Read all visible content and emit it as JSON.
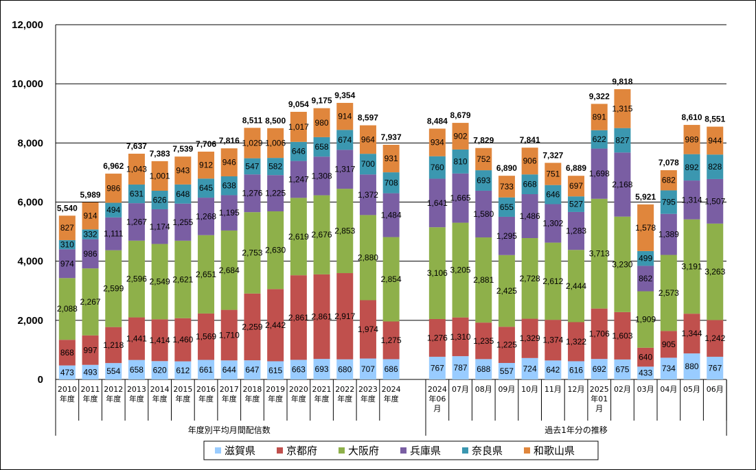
{
  "chart_data": {
    "type": "bar",
    "stacked": true,
    "ylim": [
      0,
      12000
    ],
    "yticks": [
      "0",
      "2,000",
      "4,000",
      "6,000",
      "8,000",
      "10,000",
      "12,000"
    ],
    "grid": true,
    "legend_position": "bottom",
    "categories": [
      [
        "2010",
        "年度"
      ],
      [
        "2011",
        "年度"
      ],
      [
        "2012",
        "年度"
      ],
      [
        "2013",
        "年度"
      ],
      [
        "2014",
        "年度"
      ],
      [
        "2015",
        "年度"
      ],
      [
        "2016",
        "年度"
      ],
      [
        "2017",
        "年度"
      ],
      [
        "2018",
        "年度"
      ],
      [
        "2019",
        "年度"
      ],
      [
        "2020",
        "年度"
      ],
      [
        "2021",
        "年度"
      ],
      [
        "2022",
        "年度"
      ],
      [
        "2023",
        "年度"
      ],
      [
        "2024",
        "年度"
      ],
      [
        "2024",
        "年06",
        "月"
      ],
      [
        "07月"
      ],
      [
        "08月"
      ],
      [
        "09月"
      ],
      [
        "10月"
      ],
      [
        "11月"
      ],
      [
        "12月"
      ],
      [
        "2025",
        "年01",
        "月"
      ],
      [
        "02月"
      ],
      [
        "03月"
      ],
      [
        "04月"
      ],
      [
        "05月"
      ],
      [
        "06月"
      ]
    ],
    "groups": [
      {
        "label": "年度別平均月間配信数",
        "count": 15
      },
      {
        "label": "過去1年分の推移",
        "count": 13
      }
    ],
    "series": [
      {
        "name": "滋賀県",
        "color": "#99ccff",
        "values": [
          473,
          493,
          554,
          658,
          620,
          612,
          661,
          644,
          647,
          615,
          663,
          693,
          680,
          707,
          686,
          767,
          787,
          688,
          557,
          724,
          642,
          616,
          692,
          675,
          433,
          734,
          880,
          767
        ]
      },
      {
        "name": "京都府",
        "color": "#c0504d",
        "values": [
          868,
          997,
          1218,
          1441,
          1414,
          1460,
          1569,
          1710,
          2259,
          2442,
          2861,
          2861,
          2917,
          1974,
          1275,
          1276,
          1310,
          1235,
          1225,
          1329,
          1374,
          1322,
          1706,
          1603,
          640,
          905,
          1344,
          1242
        ]
      },
      {
        "name": "大阪府",
        "color": "#8eb04a",
        "values": [
          2088,
          2267,
          2599,
          2596,
          2549,
          2621,
          2651,
          2684,
          2753,
          2630,
          2619,
          2676,
          2853,
          2880,
          2854,
          3106,
          3205,
          2881,
          2425,
          2728,
          2612,
          2444,
          3713,
          3230,
          1909,
          2573,
          3191,
          3263
        ]
      },
      {
        "name": "兵庫県",
        "color": "#7a5ea3",
        "values": [
          974,
          986,
          1111,
          1267,
          1174,
          1255,
          1268,
          1195,
          1276,
          1225,
          1247,
          1308,
          1317,
          1372,
          1484,
          1641,
          1665,
          1580,
          1295,
          1486,
          1302,
          1283,
          1698,
          2168,
          862,
          1389,
          1314,
          1507
        ]
      },
      {
        "name": "奈良県",
        "color": "#3b97b0",
        "values": [
          310,
          332,
          494,
          631,
          626,
          648,
          645,
          638,
          547,
          582,
          646,
          658,
          674,
          700,
          708,
          760,
          810,
          693,
          655,
          668,
          646,
          527,
          622,
          827,
          499,
          795,
          892,
          828
        ]
      },
      {
        "name": "和歌山県",
        "color": "#e0863c",
        "values": [
          827,
          914,
          986,
          1043,
          1001,
          943,
          912,
          946,
          1029,
          1006,
          1017,
          980,
          914,
          964,
          931,
          934,
          902,
          752,
          733,
          906,
          751,
          697,
          891,
          1315,
          1578,
          682,
          989,
          944
        ]
      }
    ],
    "totals": [
      "5,540",
      "5,989",
      "6,962",
      "7,637",
      "7,383",
      "7,539",
      "7,706",
      "7,816",
      "8,511",
      "8,500",
      "9,054",
      "9,175",
      "9,354",
      "8,597",
      "7,937",
      "8,484",
      "8,679",
      "7,829",
      "6,890",
      "7,841",
      "7,327",
      "6,889",
      "9,322",
      "9,818",
      "5,921",
      "7,078",
      "8,610",
      "8,551"
    ]
  }
}
